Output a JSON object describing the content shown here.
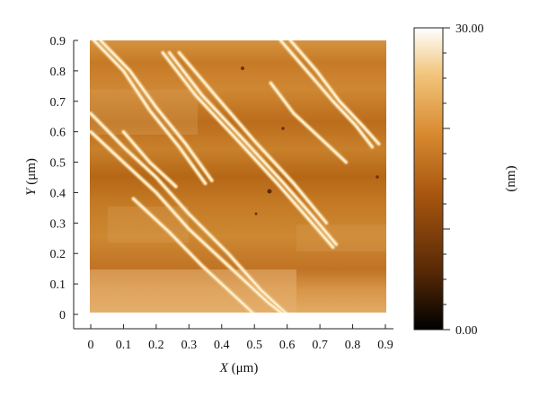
{
  "chart_data": {
    "type": "heatmap",
    "title": "",
    "x_axis": {
      "label_var": "X",
      "label_unit": "(μm)",
      "range": [
        0,
        0.9
      ],
      "ticks": [
        "0",
        "0.1",
        "0.2",
        "0.3",
        "0.4",
        "0.5",
        "0.6",
        "0.7",
        "0.8",
        "0.9"
      ]
    },
    "y_axis": {
      "label_var": "Y",
      "label_unit": "(μm)",
      "range": [
        0,
        0.9
      ],
      "ticks": [
        "0",
        "0.1",
        "0.2",
        "0.3",
        "0.4",
        "0.5",
        "0.6",
        "0.7",
        "0.8",
        "0.9"
      ]
    },
    "colorbar": {
      "min_label": "0.00",
      "max_label": "30.00",
      "range": [
        0,
        30
      ],
      "unit_label": "(nm)",
      "colors": [
        "#000000",
        "#5a2a06",
        "#a8560f",
        "#d88a30",
        "#f2c67e",
        "#ffffff"
      ]
    },
    "fibers": [
      [
        [
          0.01,
          0.9
        ],
        [
          0.1,
          0.8
        ],
        [
          0.18,
          0.67
        ],
        [
          0.27,
          0.55
        ],
        [
          0.35,
          0.43
        ]
      ],
      [
        [
          0.03,
          0.9
        ],
        [
          0.12,
          0.8
        ],
        [
          0.2,
          0.68
        ],
        [
          0.29,
          0.56
        ],
        [
          0.37,
          0.44
        ]
      ],
      [
        [
          0.22,
          0.86
        ],
        [
          0.32,
          0.72
        ],
        [
          0.45,
          0.57
        ],
        [
          0.57,
          0.43
        ],
        [
          0.66,
          0.32
        ],
        [
          0.74,
          0.22
        ]
      ],
      [
        [
          0.24,
          0.86
        ],
        [
          0.34,
          0.72
        ],
        [
          0.47,
          0.57
        ],
        [
          0.59,
          0.43
        ],
        [
          0.68,
          0.32
        ],
        [
          0.75,
          0.23
        ]
      ],
      [
        [
          0.27,
          0.86
        ],
        [
          0.38,
          0.72
        ],
        [
          0.5,
          0.57
        ],
        [
          0.62,
          0.43
        ],
        [
          0.72,
          0.3
        ]
      ],
      [
        [
          0.58,
          0.9
        ],
        [
          0.66,
          0.8
        ],
        [
          0.74,
          0.7
        ],
        [
          0.81,
          0.62
        ],
        [
          0.86,
          0.55
        ]
      ],
      [
        [
          0.61,
          0.9
        ],
        [
          0.69,
          0.8
        ],
        [
          0.76,
          0.7
        ],
        [
          0.83,
          0.62
        ],
        [
          0.88,
          0.56
        ]
      ],
      [
        [
          0.0,
          0.66
        ],
        [
          0.1,
          0.55
        ],
        [
          0.2,
          0.45
        ],
        [
          0.3,
          0.33
        ],
        [
          0.42,
          0.2
        ],
        [
          0.52,
          0.08
        ],
        [
          0.6,
          0.0
        ]
      ],
      [
        [
          0.0,
          0.6
        ],
        [
          0.1,
          0.5
        ],
        [
          0.2,
          0.4
        ],
        [
          0.3,
          0.28
        ],
        [
          0.42,
          0.16
        ],
        [
          0.54,
          0.04
        ],
        [
          0.6,
          -0.01
        ]
      ],
      [
        [
          0.13,
          0.38
        ],
        [
          0.24,
          0.27
        ],
        [
          0.34,
          0.16
        ],
        [
          0.44,
          0.06
        ],
        [
          0.5,
          0.0
        ]
      ],
      [
        [
          0.1,
          0.6
        ],
        [
          0.18,
          0.5
        ],
        [
          0.26,
          0.42
        ]
      ],
      [
        [
          0.55,
          0.76
        ],
        [
          0.62,
          0.66
        ],
        [
          0.7,
          0.58
        ],
        [
          0.78,
          0.5
        ]
      ]
    ]
  }
}
